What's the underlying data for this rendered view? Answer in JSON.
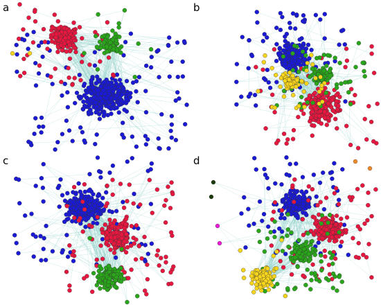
{
  "figure": {
    "panels": [
      {
        "label": "a"
      },
      {
        "label": "b"
      },
      {
        "label": "c"
      },
      {
        "label": "d"
      }
    ]
  },
  "colors": {
    "blue": "#1a1ad6",
    "red": "#e8173f",
    "green": "#2aa61a",
    "yellow": "#f7d51d",
    "orange": "#f08a28",
    "magenta": "#e81ad4",
    "darkgreen": "#1a3a0a",
    "edge": "#8ccfc8",
    "node_stroke": "#333333"
  }
}
